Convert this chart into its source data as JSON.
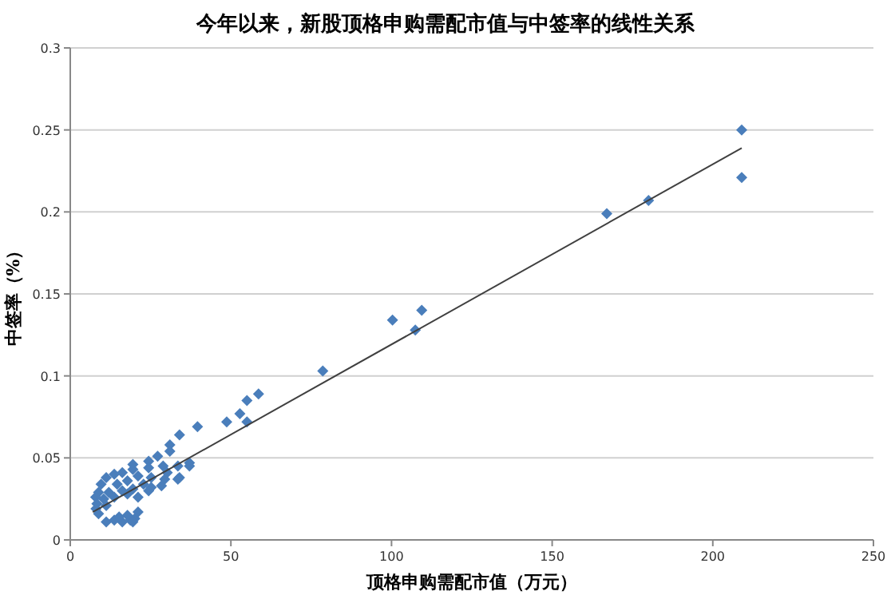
{
  "chart_data": {
    "type": "scatter",
    "title": "今年以来，新股顶格申购需配市值与中签率的线性关系",
    "xlabel": "顶格申购需配市值（万元）",
    "ylabel": "中签率（%）",
    "xlim": [
      0,
      250
    ],
    "xticks": [
      0,
      50,
      100,
      150,
      200,
      250
    ],
    "ylim": [
      0,
      0.3
    ],
    "yticks": [
      0,
      0.05,
      0.1,
      0.15,
      0.2,
      0.25,
      0.3
    ],
    "grid": "y",
    "series": [
      {
        "type": "scatter",
        "marker": "diamond",
        "color": "#4a7ebb",
        "x": [
          209,
          209,
          180,
          167,
          109.4,
          100.3,
          107.4,
          78.6,
          58.6,
          55,
          52.8,
          55,
          48.7,
          39.6,
          34,
          31,
          31,
          27.2,
          37.1,
          37.1,
          33.5,
          28.9,
          24.4,
          24.4,
          19.5,
          19.5,
          16.2,
          13.7,
          11.2,
          21.1,
          25.2,
          34,
          30.2,
          29.4,
          33.5,
          22.8,
          17.8,
          14.6,
          9.6,
          19.5,
          25.2,
          28.4,
          24.4,
          16.2,
          12,
          8.8,
          7.9,
          10.4,
          13.7,
          17.8,
          21.1,
          8.3,
          11.2,
          8,
          8.8,
          11.2,
          13.7,
          16.2,
          18.7,
          20.1,
          21.1,
          17.8,
          15.2,
          19.5
        ],
        "values": [
          0.25,
          0.221,
          0.207,
          0.199,
          0.14,
          0.134,
          0.128,
          0.103,
          0.089,
          0.085,
          0.077,
          0.072,
          0.072,
          0.069,
          0.064,
          0.058,
          0.054,
          0.051,
          0.047,
          0.045,
          0.045,
          0.045,
          0.048,
          0.044,
          0.046,
          0.043,
          0.041,
          0.04,
          0.038,
          0.039,
          0.038,
          0.038,
          0.041,
          0.037,
          0.037,
          0.034,
          0.036,
          0.034,
          0.034,
          0.031,
          0.032,
          0.033,
          0.03,
          0.03,
          0.029,
          0.029,
          0.026,
          0.025,
          0.026,
          0.028,
          0.026,
          0.022,
          0.021,
          0.019,
          0.016,
          0.011,
          0.012,
          0.011,
          0.012,
          0.013,
          0.017,
          0.015,
          0.014,
          0.011
        ]
      },
      {
        "type": "line",
        "marker": "none",
        "color": "#404040",
        "x": [
          7,
          209
        ],
        "values": [
          0.017,
          0.239
        ]
      }
    ]
  }
}
